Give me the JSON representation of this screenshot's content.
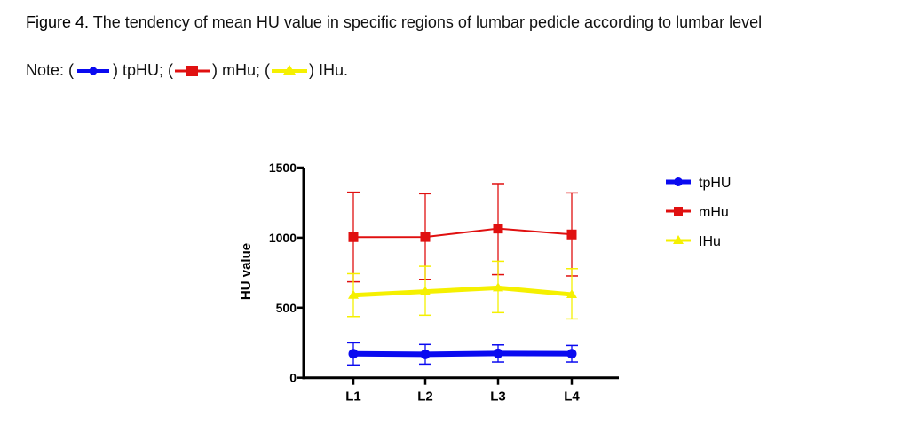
{
  "caption": {
    "label": "Figure 4.",
    "text": " The tendency of mean HU value in specific regions of lumbar pedicle according to lumbar level"
  },
  "note": {
    "prefix": "Note: (",
    "items": [
      {
        "after": ") tpHU; ("
      },
      {
        "after": ") mHu; ("
      },
      {
        "after": ") IHu."
      }
    ]
  },
  "chart_data": {
    "type": "line",
    "title": "",
    "xlabel": "",
    "ylabel": "HU value",
    "ylim": [
      0,
      1500
    ],
    "yticks": [
      0,
      500,
      1000,
      1500
    ],
    "categories": [
      "L1",
      "L2",
      "L3",
      "L4"
    ],
    "legend_position": "right",
    "series": [
      {
        "name": "tpHU",
        "color": "#0a0af0",
        "marker": "circle",
        "values": [
          171,
          167,
          173,
          171
        ],
        "err_upper": [
          249,
          237,
          234,
          230
        ],
        "err_lower": [
          91,
          97,
          112,
          112
        ]
      },
      {
        "name": "mHu",
        "color": "#e01010",
        "marker": "square",
        "values": [
          1004,
          1005,
          1065,
          1023
        ],
        "err_upper": [
          1325,
          1314,
          1386,
          1320
        ],
        "err_lower": [
          685,
          700,
          736,
          727
        ]
      },
      {
        "name": "IHu",
        "color": "#f5f000",
        "marker": "triangle",
        "values": [
          589,
          615,
          642,
          594
        ],
        "err_upper": [
          743,
          796,
          832,
          779
        ],
        "err_lower": [
          437,
          446,
          465,
          420
        ]
      }
    ]
  }
}
